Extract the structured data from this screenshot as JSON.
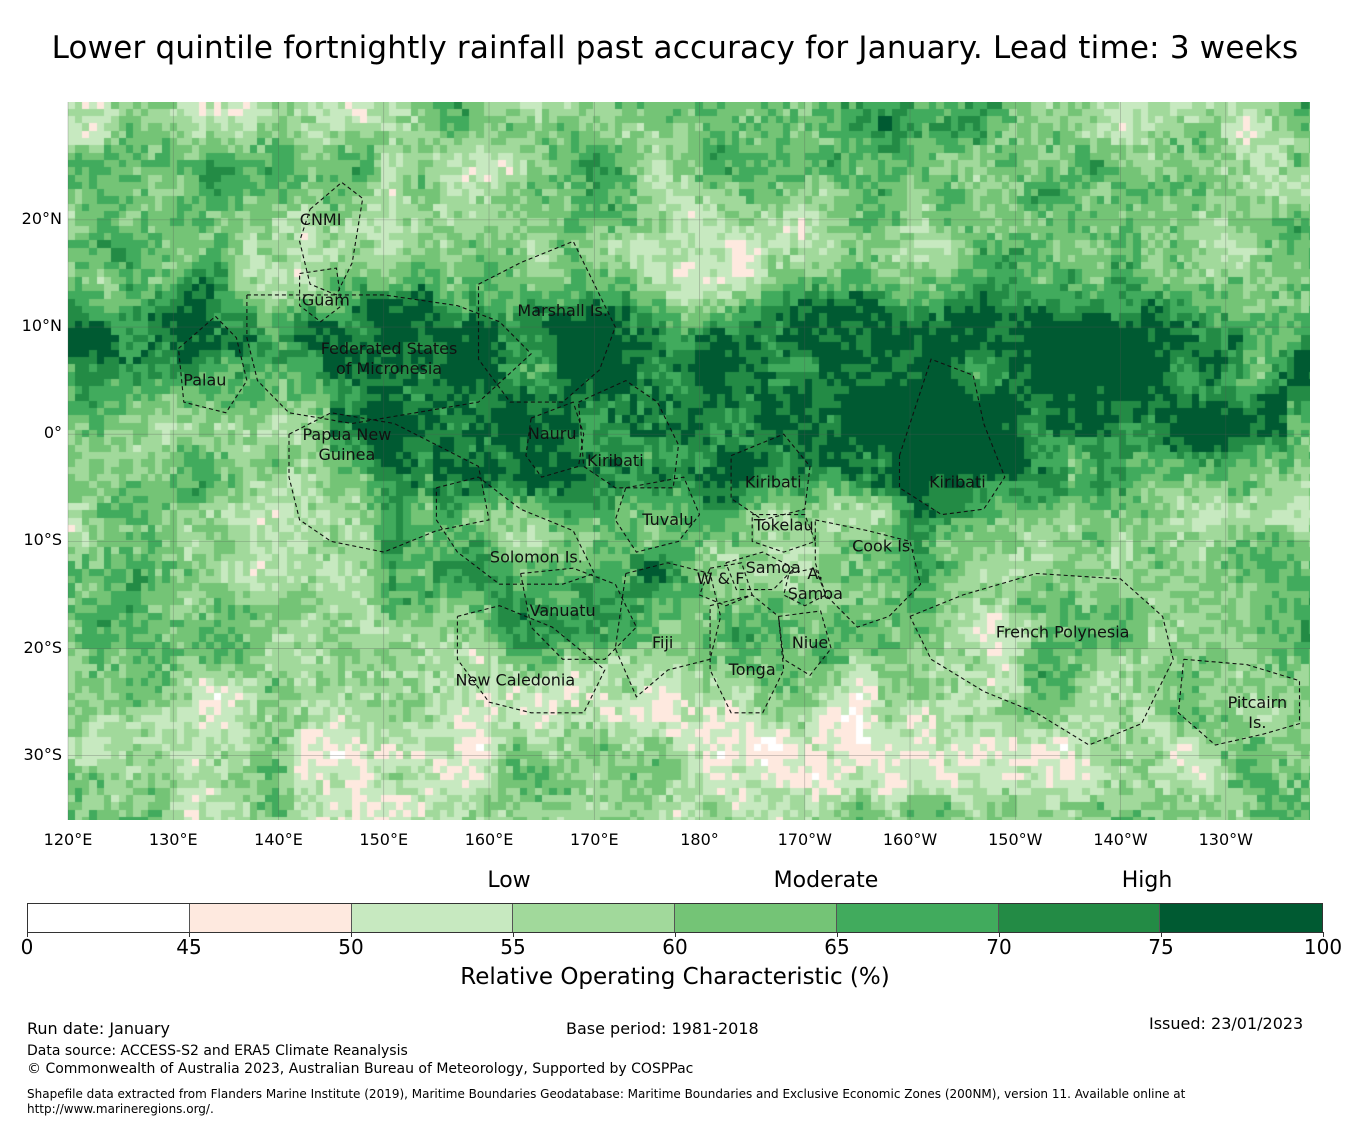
{
  "title": "Lower quintile fortnightly rainfall past accuracy for January. Lead time: 3 weeks",
  "map": {
    "lat_ticks": [
      "20°N",
      "10°N",
      "0°",
      "10°S",
      "20°S",
      "30°S"
    ],
    "lat_values": [
      20,
      10,
      0,
      -10,
      -20,
      -30
    ],
    "lon_ticks": [
      "120°E",
      "130°E",
      "140°E",
      "150°E",
      "160°E",
      "170°E",
      "180°",
      "170°W",
      "160°W",
      "150°W",
      "140°W",
      "130°W"
    ],
    "lon_values": [
      120,
      130,
      140,
      150,
      160,
      170,
      180,
      190,
      200,
      210,
      220,
      230
    ],
    "extent": {
      "lon_min": 120,
      "lon_max": 238,
      "lat_min": -36,
      "lat_max": 31
    },
    "regions": [
      {
        "name": "CNMI",
        "lines": [
          "CNMI"
        ],
        "lon": 144,
        "lat": 20
      },
      {
        "name": "Guam",
        "lines": [
          "Guam"
        ],
        "lon": 144.5,
        "lat": 12.5
      },
      {
        "name": "Marshall Is.",
        "lines": [
          "Marshall Is."
        ],
        "lon": 167,
        "lat": 11.5
      },
      {
        "name": "Federated States of Micronesia",
        "lines": [
          "Federated States",
          "of Micronesia"
        ],
        "lon": 150.5,
        "lat": 7
      },
      {
        "name": "Palau",
        "lines": [
          "Palau"
        ],
        "lon": 133,
        "lat": 5
      },
      {
        "name": "Papua New Guinea",
        "lines": [
          "Papua New",
          "Guinea"
        ],
        "lon": 146.5,
        "lat": -1
      },
      {
        "name": "Nauru",
        "lines": [
          "Nauru"
        ],
        "lon": 166,
        "lat": 0
      },
      {
        "name": "Kiribati (Gilbert)",
        "lines": [
          "Kiribati"
        ],
        "lon": 172,
        "lat": -2.5
      },
      {
        "name": "Kiribati (Phoenix)",
        "lines": [
          "Kiribati"
        ],
        "lon": 187,
        "lat": -4.5
      },
      {
        "name": "Kiribati (Line)",
        "lines": [
          "Kiribati"
        ],
        "lon": 204.5,
        "lat": -4.5
      },
      {
        "name": "Tuvalu",
        "lines": [
          "Tuvalu"
        ],
        "lon": 177,
        "lat": -8
      },
      {
        "name": "Tokelau",
        "lines": [
          "Tokelau"
        ],
        "lon": 188,
        "lat": -8.5
      },
      {
        "name": "Cook Is.",
        "lines": [
          "Cook Is."
        ],
        "lon": 197.5,
        "lat": -10.5
      },
      {
        "name": "Solomon Is.",
        "lines": [
          "Solomon Is."
        ],
        "lon": 164.5,
        "lat": -11.5
      },
      {
        "name": "Samoa",
        "lines": [
          "Samoa"
        ],
        "lon": 187,
        "lat": -12.5
      },
      {
        "name": "W & F",
        "lines": [
          "W & F"
        ],
        "lon": 182,
        "lat": -13.5
      },
      {
        "name": "A. Samoa",
        "lines": [
          "A.",
          "Samoa"
        ],
        "lon": 191,
        "lat": -14
      },
      {
        "name": "Vanuatu",
        "lines": [
          "Vanuatu"
        ],
        "lon": 167,
        "lat": -16.5
      },
      {
        "name": "French Polynesia",
        "lines": [
          "French Polynesia"
        ],
        "lon": 214.5,
        "lat": -18.5
      },
      {
        "name": "Fiji",
        "lines": [
          "Fiji"
        ],
        "lon": 176.5,
        "lat": -19.5
      },
      {
        "name": "Niue",
        "lines": [
          "Niue"
        ],
        "lon": 190.5,
        "lat": -19.5
      },
      {
        "name": "Tonga",
        "lines": [
          "Tonga"
        ],
        "lon": 185,
        "lat": -22
      },
      {
        "name": "New Caledonia",
        "lines": [
          "New Caledonia"
        ],
        "lon": 162.5,
        "lat": -23
      },
      {
        "name": "Pitcairn Is.",
        "lines": [
          "Pitcairn",
          "Is."
        ],
        "lon": 233,
        "lat": -26
      }
    ]
  },
  "legend": {
    "categories": [
      "Low",
      "Moderate",
      "High"
    ],
    "bounds": [
      0,
      45,
      50,
      55,
      60,
      65,
      70,
      75,
      100
    ],
    "tick_labels": [
      "0",
      "45",
      "50",
      "55",
      "60",
      "65",
      "70",
      "75",
      "100"
    ],
    "colors": [
      "#ffffff",
      "#fee9df",
      "#c7e9c0",
      "#a1d99b",
      "#74c476",
      "#41ab5d",
      "#238b45",
      "#005a32"
    ],
    "label": "Relative Operating Characteristic (%)"
  },
  "footer": {
    "run_date": "Run date: January",
    "base_period": "Base period: 1981-2018",
    "issued": "Issued: 23/01/2023",
    "data_source": "Data source: ACCESS-S2 and ERA5 Climate Reanalysis",
    "copyright": "© Commonwealth of Australia 2023, Australian Bureau of Meteorology, Supported by COSPPac",
    "shapefile_line1": "Shapefile data extracted from Flanders Marine Institute (2019), Maritime Boundaries Geodatabase: Maritime Boundaries and Exclusive Economic Zones (200NM), version 11. Available online at",
    "shapefile_line2": "http://www.marineregions.org/."
  }
}
